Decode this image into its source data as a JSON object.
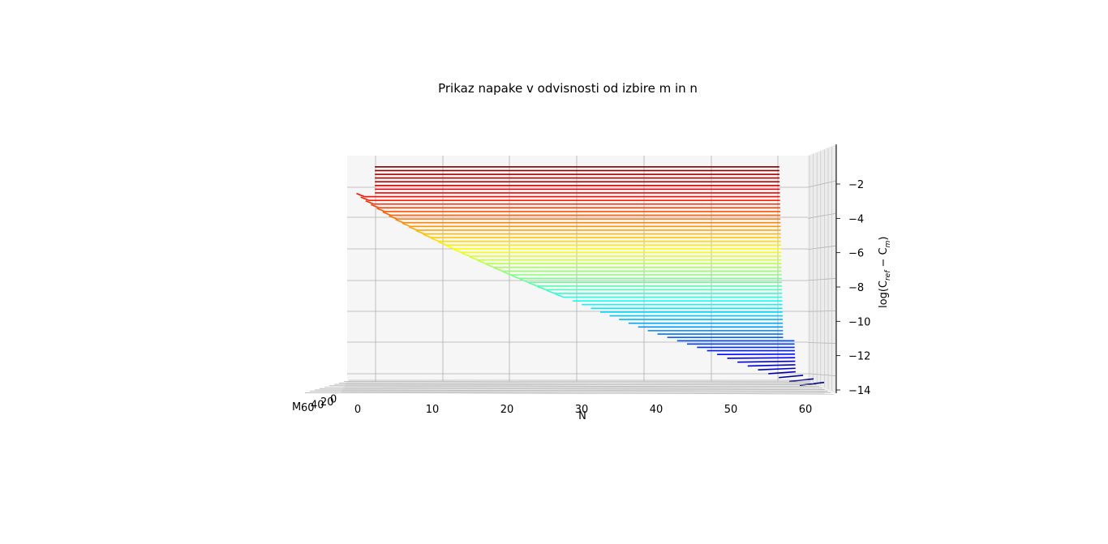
{
  "chart_data": {
    "type": "surface-wireframe-3d",
    "title": "Prikaz napake v odvisnosti od izbire m in n",
    "xlabel": "N",
    "ylabel": "M",
    "zlabel": "log(C",
    "zlabel_ref": "ref",
    "zlabel_minus": " − C",
    "zlabel_m": "m",
    "zlabel_close": ")",
    "xlim": [
      0,
      60
    ],
    "zlim": [
      -14,
      -1
    ],
    "x_ticks": [
      "0",
      "10",
      "20",
      "30",
      "40",
      "50",
      "60"
    ],
    "z_ticks": [
      "−2",
      "−4",
      "−6",
      "−8",
      "−10",
      "−12",
      "−14"
    ],
    "m_ticks": [
      "60",
      "40",
      "20",
      "0"
    ],
    "colormap": "jet",
    "surface": {
      "description_values": "log error vs N for successive M; plateau reached at larger N for smaller error",
      "levels_top": -1,
      "levels_bottom": -13.8,
      "line_count": 60
    }
  }
}
